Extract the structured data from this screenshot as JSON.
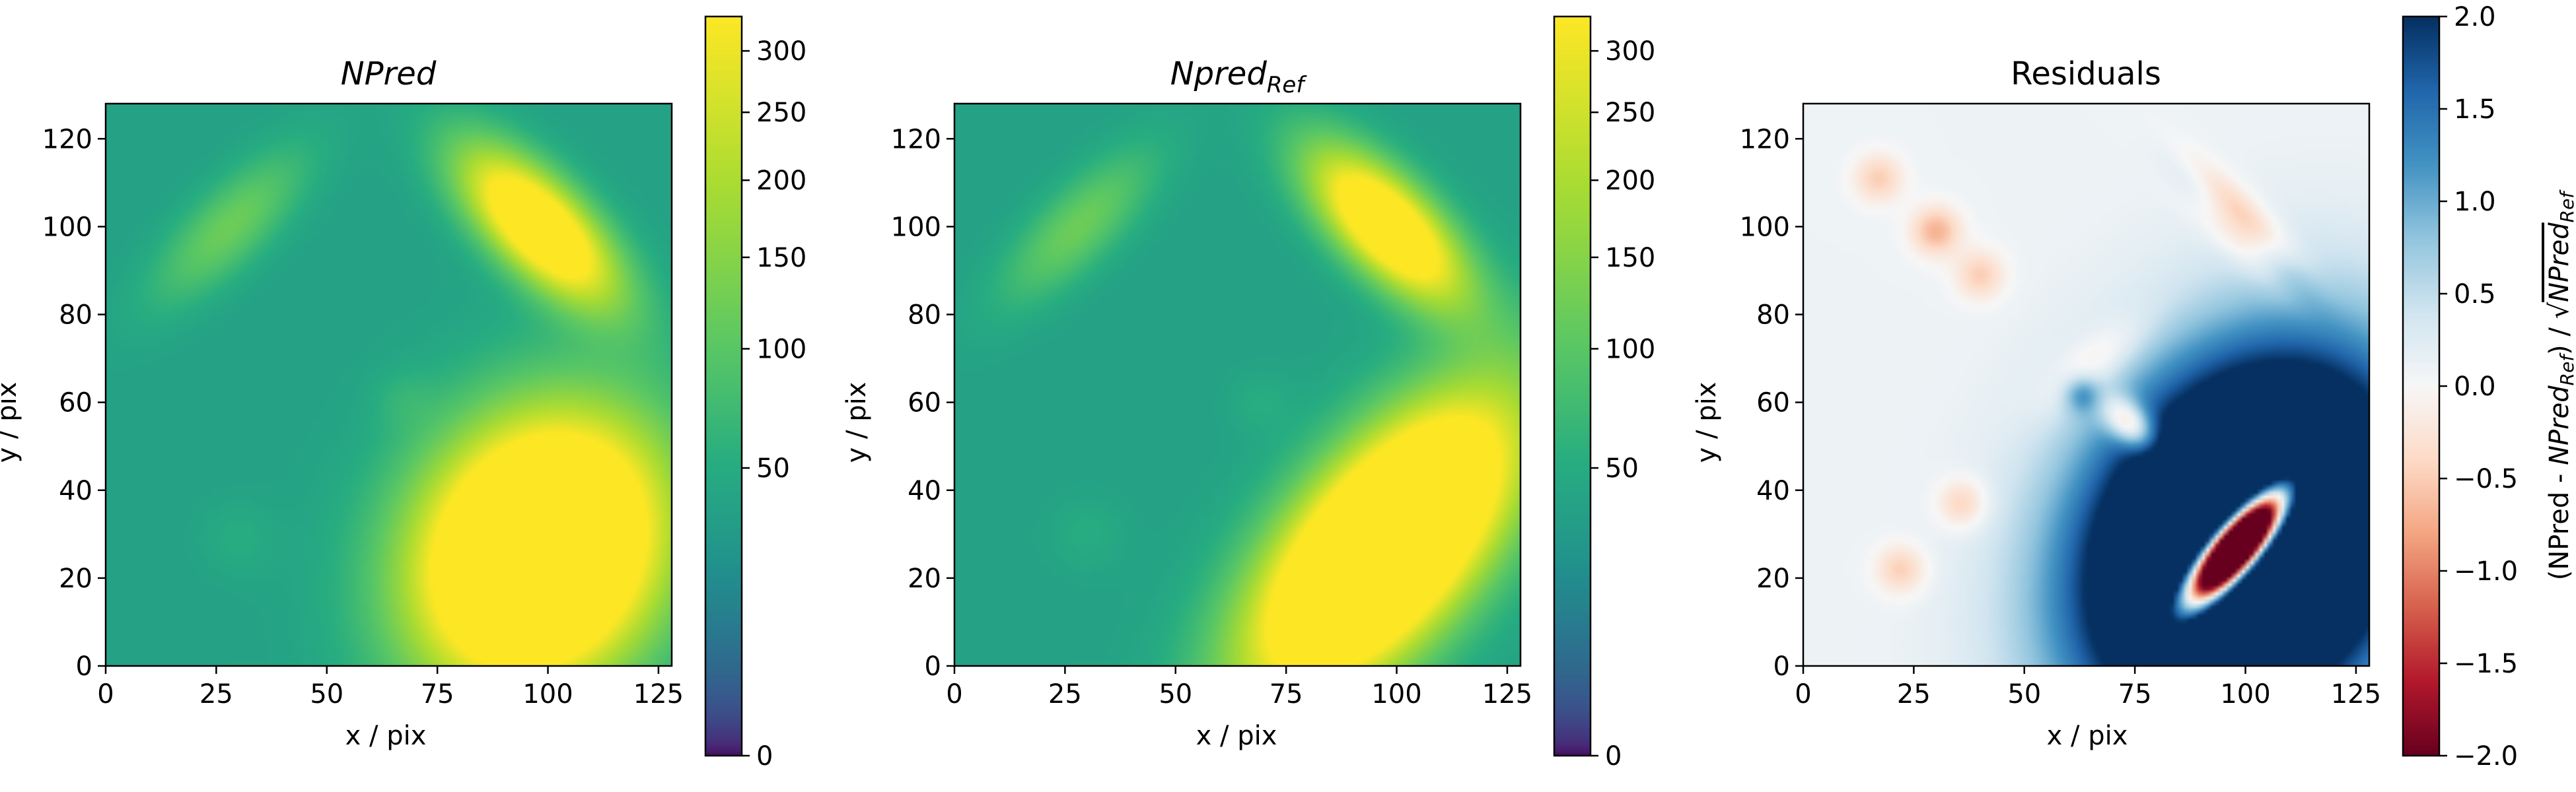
{
  "chart_data": [
    {
      "type": "heatmap",
      "title": "NPred",
      "title_style": "italic",
      "xlabel": "x / pix",
      "ylabel": "y / pix",
      "xlim": [
        0,
        128
      ],
      "ylim": [
        0,
        128
      ],
      "xticks": [
        0,
        25,
        50,
        75,
        100,
        125
      ],
      "yticks": [
        0,
        20,
        40,
        60,
        80,
        100,
        120
      ],
      "colormap": "viridis",
      "color_scale": "sqrt",
      "colorbar": {
        "range": [
          0,
          330
        ],
        "ticks": [
          0,
          50,
          100,
          150,
          200,
          250,
          300
        ],
        "label": ""
      },
      "background_level": 110,
      "blobs": [
        {
          "x": 28,
          "y": 100,
          "sx": 6,
          "sy": 16,
          "angle": -45,
          "peak": 90
        },
        {
          "x": 98,
          "y": 100,
          "sx": 7,
          "sy": 16,
          "angle": 45,
          "peak": 330
        },
        {
          "x": 67,
          "y": 61,
          "sx": 5,
          "sy": 5,
          "angle": 0,
          "peak": 20
        },
        {
          "x": 30,
          "y": 29,
          "sx": 6,
          "sy": 6,
          "angle": 0,
          "peak": 20
        },
        {
          "x": 98,
          "y": 26,
          "sx": 18,
          "sy": 22,
          "angle": -30,
          "peak": 500
        }
      ]
    },
    {
      "type": "heatmap",
      "title": "Npred",
      "title_subscript": "Ref",
      "title_style": "italic",
      "xlabel": "x / pix",
      "ylabel": "y / pix",
      "xlim": [
        0,
        128
      ],
      "ylim": [
        0,
        128
      ],
      "xticks": [
        0,
        25,
        50,
        75,
        100,
        125
      ],
      "yticks": [
        0,
        20,
        40,
        60,
        80,
        100,
        120
      ],
      "colormap": "viridis",
      "color_scale": "sqrt",
      "colorbar": {
        "range": [
          0,
          330
        ],
        "ticks": [
          0,
          50,
          100,
          150,
          200,
          250,
          300
        ],
        "label": ""
      },
      "background_level": 110,
      "blobs": [
        {
          "x": 28,
          "y": 100,
          "sx": 6,
          "sy": 16,
          "angle": -45,
          "peak": 90
        },
        {
          "x": 98,
          "y": 100,
          "sx": 7,
          "sy": 16,
          "angle": 45,
          "peak": 330
        },
        {
          "x": 69,
          "y": 60,
          "sx": 5,
          "sy": 5,
          "angle": 0,
          "peak": 20
        },
        {
          "x": 30,
          "y": 30,
          "sx": 6,
          "sy": 6,
          "angle": 0,
          "peak": 20
        },
        {
          "x": 97,
          "y": 27,
          "sx": 13,
          "sy": 28,
          "angle": -40,
          "peak": 500
        }
      ]
    },
    {
      "type": "heatmap",
      "title": "Residuals",
      "xlabel": "x / pix",
      "ylabel": "y / pix",
      "xlim": [
        0,
        128
      ],
      "ylim": [
        0,
        128
      ],
      "xticks": [
        0,
        25,
        50,
        75,
        100,
        125
      ],
      "yticks": [
        0,
        20,
        40,
        60,
        80,
        100,
        120
      ],
      "colormap": "RdBu",
      "colorbar": {
        "range": [
          -2.0,
          2.0
        ],
        "ticks": [
          -2.0,
          -1.5,
          -1.0,
          -0.5,
          0.0,
          0.5,
          1.0,
          1.5,
          2.0
        ],
        "tick_labels": [
          "−2.0",
          "−1.5",
          "−1.0",
          "−0.5",
          "0.0",
          "0.5",
          "1.0",
          "1.5",
          "2.0"
        ],
        "label": "(NPred - NPred_Ref) / √NPred_Ref"
      },
      "background_level": 0.1,
      "blobs": [
        {
          "x": 17,
          "y": 111,
          "sx": 4,
          "sy": 4,
          "angle": 0,
          "peak": -0.6
        },
        {
          "x": 30,
          "y": 99,
          "sx": 4,
          "sy": 4,
          "angle": 0,
          "peak": -0.8
        },
        {
          "x": 40,
          "y": 89,
          "sx": 4,
          "sy": 4,
          "angle": 0,
          "peak": -0.6
        },
        {
          "x": 92,
          "y": 106,
          "sx": 3,
          "sy": 10,
          "angle": 45,
          "peak": 1.1
        },
        {
          "x": 106,
          "y": 93,
          "sx": 3,
          "sy": 10,
          "angle": 45,
          "peak": 1.1
        },
        {
          "x": 99,
          "y": 100,
          "sx": 3.5,
          "sy": 13,
          "angle": 45,
          "peak": -2.0
        },
        {
          "x": 66,
          "y": 69,
          "sx": 4,
          "sy": 10,
          "angle": -50,
          "peak": -0.5
        },
        {
          "x": 63,
          "y": 62,
          "sx": 3,
          "sy": 3,
          "angle": 0,
          "peak": 0.9
        },
        {
          "x": 74,
          "y": 55,
          "sx": 3,
          "sy": 5,
          "angle": 45,
          "peak": -1.6
        },
        {
          "x": 36,
          "y": 37,
          "sx": 4,
          "sy": 4,
          "angle": 0,
          "peak": -0.6
        },
        {
          "x": 22,
          "y": 22,
          "sx": 4,
          "sy": 4,
          "angle": 0,
          "peak": -0.6
        },
        {
          "x": 100,
          "y": 28,
          "sx": 22,
          "sy": 29,
          "angle": -30,
          "peak": 6.0
        },
        {
          "x": 98,
          "y": 27,
          "sx": 4,
          "sy": 12,
          "angle": -40,
          "peak": -12.0
        }
      ]
    }
  ]
}
